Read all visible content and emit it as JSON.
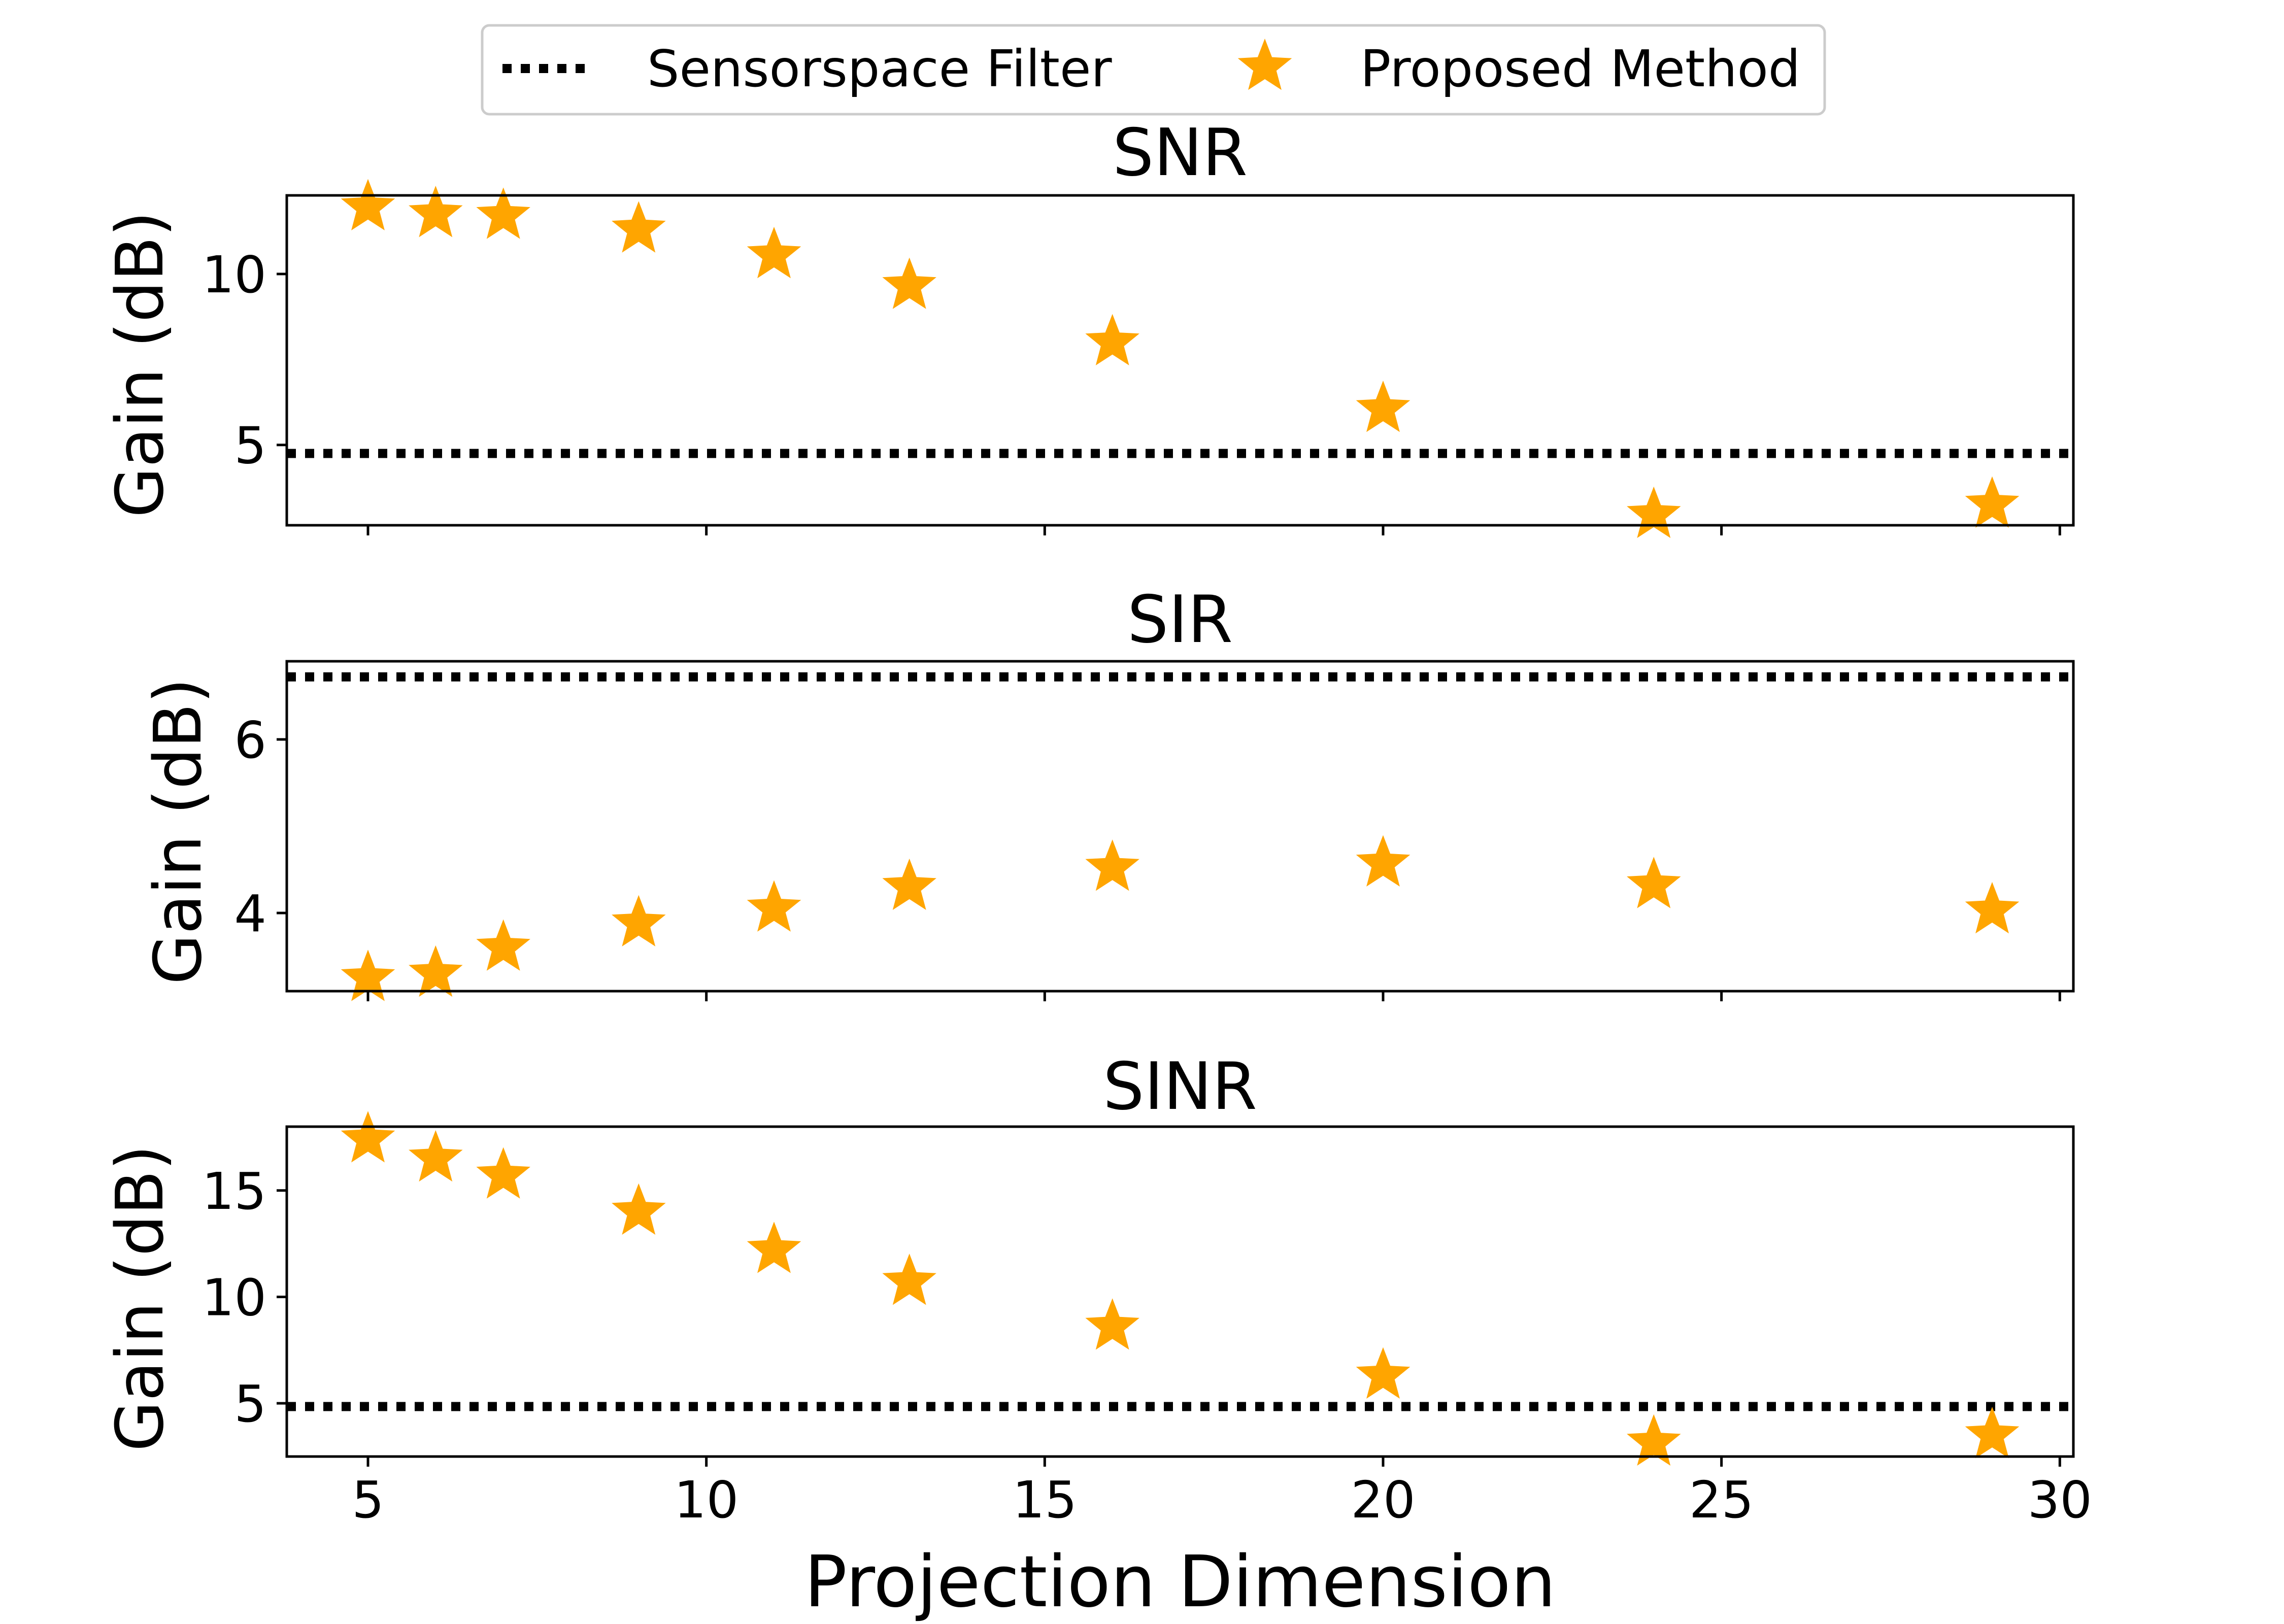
{
  "legend": {
    "position": "top-center",
    "entries": [
      {
        "label": "Sensorspace Filter",
        "style": "dotted-line",
        "color": "#000000"
      },
      {
        "label": "Proposed Method",
        "style": "star",
        "color": "#FFA500"
      }
    ]
  },
  "xlabel": "Projection Dimension",
  "chart_data": [
    {
      "type": "scatter",
      "title": "SNR",
      "xlabel": "",
      "ylabel": "Gain (dB)",
      "xlim": [
        3.8,
        30.2
      ],
      "ylim": [
        2.65,
        12.3
      ],
      "xticks": [
        5,
        10,
        15,
        20,
        25,
        30
      ],
      "xtick_labels": [
        "",
        "",
        "",
        "",
        "",
        ""
      ],
      "yticks": [
        5,
        10
      ],
      "ytick_labels": [
        "5",
        "10"
      ],
      "grid": false,
      "series": [
        {
          "name": "Proposed Method",
          "marker": "star",
          "color": "#FFA500",
          "x": [
            5,
            6,
            7,
            9,
            11,
            13,
            16,
            20,
            24,
            29
          ],
          "y": [
            11.95,
            11.75,
            11.7,
            11.3,
            10.55,
            9.65,
            8.0,
            6.05,
            2.95,
            3.25
          ]
        }
      ],
      "hlines": [
        {
          "name": "Sensorspace Filter",
          "y": 4.75,
          "style": "dotted",
          "color": "#000000"
        }
      ]
    },
    {
      "type": "scatter",
      "title": "SIR",
      "xlabel": "",
      "ylabel": "Gain (dB)",
      "xlim": [
        3.8,
        30.2
      ],
      "ylim": [
        3.1,
        6.9
      ],
      "xticks": [
        5,
        10,
        15,
        20,
        25,
        30
      ],
      "xtick_labels": [
        "",
        "",
        "",
        "",
        "",
        ""
      ],
      "yticks": [
        4,
        6
      ],
      "ytick_labels": [
        "4",
        "6"
      ],
      "grid": false,
      "series": [
        {
          "name": "Proposed Method",
          "marker": "star",
          "color": "#FFA500",
          "x": [
            5,
            6,
            7,
            9,
            11,
            13,
            16,
            20,
            24,
            29
          ],
          "y": [
            3.25,
            3.3,
            3.6,
            3.88,
            4.05,
            4.3,
            4.52,
            4.57,
            4.32,
            4.03
          ]
        }
      ],
      "hlines": [
        {
          "name": "Sensorspace Filter",
          "y": 6.72,
          "style": "dotted",
          "color": "#000000"
        }
      ]
    },
    {
      "type": "scatter",
      "title": "SINR",
      "xlabel": "Projection Dimension",
      "ylabel": "Gain (dB)",
      "xlim": [
        3.8,
        30.2
      ],
      "ylim": [
        2.5,
        18.0
      ],
      "xticks": [
        5,
        10,
        15,
        20,
        25,
        30
      ],
      "xtick_labels": [
        "5",
        "10",
        "15",
        "20",
        "25",
        "30"
      ],
      "yticks": [
        5,
        10,
        15
      ],
      "ytick_labels": [
        "5",
        "10",
        "15"
      ],
      "grid": false,
      "series": [
        {
          "name": "Proposed Method",
          "marker": "star",
          "color": "#FFA500",
          "x": [
            5,
            6,
            7,
            9,
            11,
            13,
            16,
            20,
            24,
            29
          ],
          "y": [
            17.4,
            16.5,
            15.7,
            14.0,
            12.2,
            10.7,
            8.6,
            6.3,
            3.15,
            3.5
          ]
        }
      ],
      "hlines": [
        {
          "name": "Sensorspace Filter",
          "y": 4.85,
          "style": "dotted",
          "color": "#000000"
        }
      ]
    }
  ]
}
